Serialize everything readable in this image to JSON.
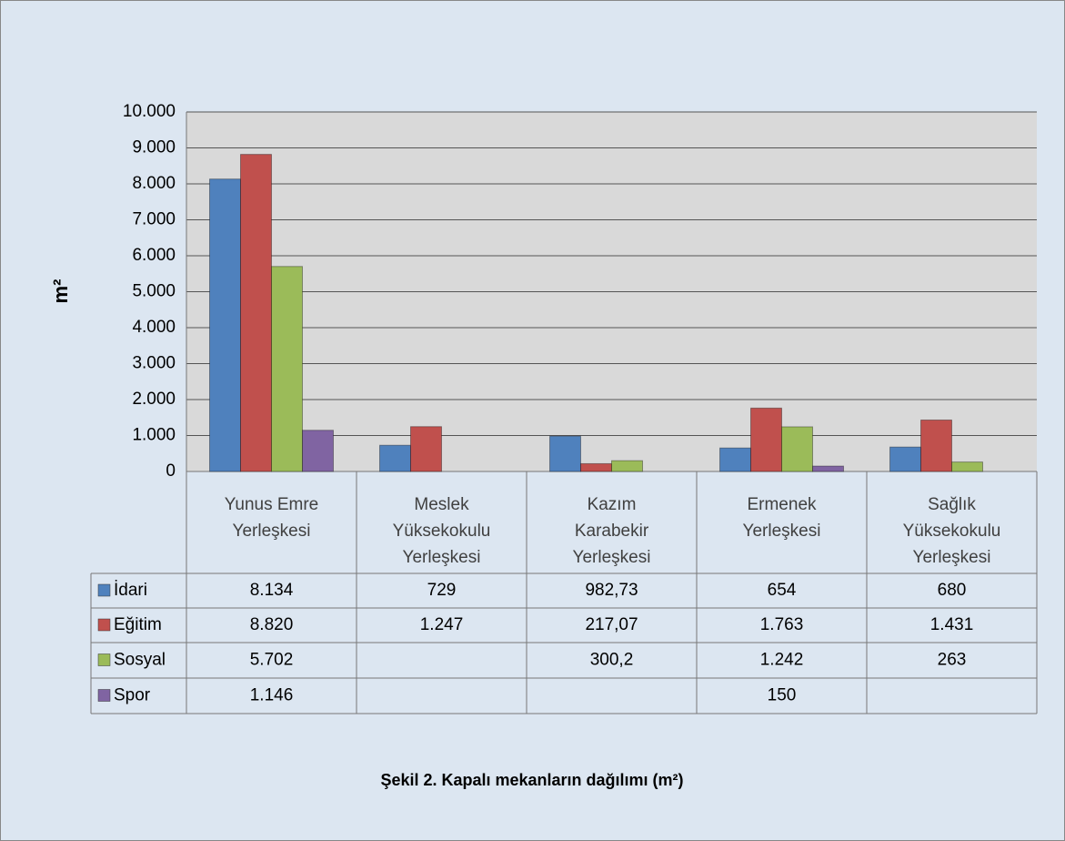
{
  "chart_data": {
    "type": "bar",
    "title": "Şekil 2. Kapalı mekanların dağılımı (m²)",
    "y_label": "m²",
    "categories": [
      "Yunus Emre Yerleşkesi",
      "Meslek Yüksekokulu Yerleşkesi",
      "Kazım Karabekir Yerleşkesi",
      "Ermenek Yerleşkesi",
      "Sağlık Yüksekokulu Yerleşkesi"
    ],
    "series": [
      {
        "name": "İdari",
        "color": "#4f81bd",
        "values": [
          8134,
          729,
          982.73,
          654,
          680
        ],
        "value_labels": [
          "8.134",
          "729",
          "982,73",
          "654",
          "680"
        ]
      },
      {
        "name": "Eğitim",
        "color": "#c0504d",
        "values": [
          8820,
          1247,
          217.07,
          1763,
          1431
        ],
        "value_labels": [
          "8.820",
          "1.247",
          "217,07",
          "1.763",
          "1.431"
        ]
      },
      {
        "name": "Sosyal",
        "color": "#9bbb59",
        "values": [
          5702,
          null,
          300.2,
          1242,
          263
        ],
        "value_labels": [
          "5.702",
          null,
          "300,2",
          "1.242",
          "263"
        ]
      },
      {
        "name": "Spor",
        "color": "#8064a2",
        "values": [
          1146,
          null,
          null,
          150,
          null
        ],
        "value_labels": [
          "1.146",
          null,
          null,
          "150",
          null
        ]
      }
    ],
    "ylim": [
      0,
      10000
    ],
    "yticks": [
      0,
      {
        "value": 1000,
        "label": "1.000"
      },
      {
        "value": 2000,
        "label": "2.000"
      },
      {
        "value": 3000,
        "label": "3.000"
      },
      {
        "value": 4000,
        "label": "4.000"
      },
      {
        "value": 5000,
        "label": "5.000"
      },
      {
        "value": 6000,
        "label": "6.000"
      },
      {
        "value": 7000,
        "label": "7.000"
      },
      {
        "value": 8000,
        "label": "8.000"
      },
      {
        "value": 9000,
        "label": "9.000"
      },
      {
        "value": 10000,
        "label": "10.000"
      }
    ],
    "grid": true
  }
}
